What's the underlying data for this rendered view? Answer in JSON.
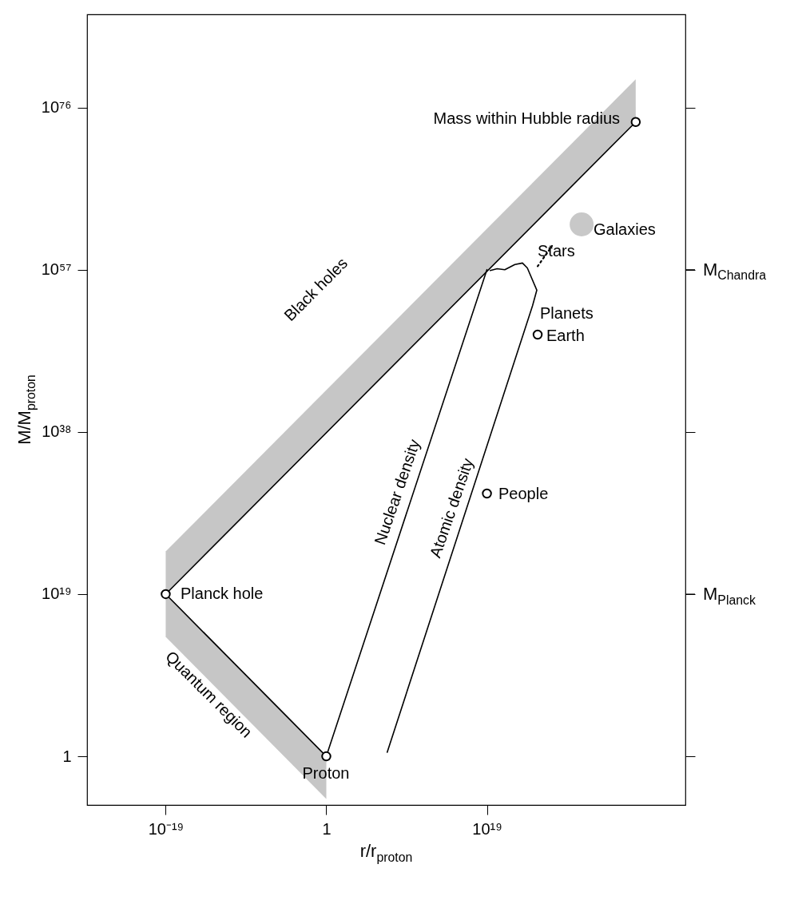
{
  "chart_data": {
    "type": "line",
    "log": "xy",
    "grid": false,
    "legend": false,
    "xlabel": "r/r$_{proton}$",
    "ylabel": "M/M$_{proton}$",
    "xlim": [
      5e-29,
      3e+42
    ],
    "ylim": [
      2e-06,
      8e+86
    ],
    "xticks": [
      {
        "value": 1e-19,
        "label": "10⁻¹⁹"
      },
      1,
      {
        "value": 1e+19,
        "label": "10¹⁹"
      }
    ],
    "yticks": [
      1,
      {
        "value": 1e+19,
        "label": "10¹⁹"
      },
      {
        "value": 1e+38,
        "label": "10³⁸"
      },
      {
        "value": 1e+57,
        "label": "10⁵⁷"
      },
      {
        "value": 1e+76,
        "label": "10⁷⁶"
      }
    ],
    "ref_lines": [
      {
        "axis": "y",
        "value": 1e+19,
        "label": "M$_{Planck}$"
      },
      {
        "axis": "y",
        "value": 1e+57,
        "label": "M$_{Chandra}$"
      }
    ],
    "series": [
      {
        "color": "#000000",
        "x": [
          1e-19,
          4e+36
        ],
        "values": [
          1e+19,
          2e+74
        ],
        "lower": [
          1e+19,
          2e+74
        ],
        "upper": [
          1e+24,
          2e+79
        ]
      },
      {
        "color": "#000000",
        "x": [
          1e-19,
          1
        ],
        "values": [
          1e+19,
          1
        ],
        "lower": [
          100000000000000.0,
          1e-05
        ],
        "upper": [
          1e+19,
          1
        ]
      },
      {
        "color": "#000000",
        "x": [
          1,
          1e+19
        ],
        "values": [
          1,
          1e+57
        ]
      },
      {
        "color": "#000000",
        "x": [
          16000000.0,
          2.5e+24,
          8e+24,
          6e+23,
          1.6e+23,
          2e+22,
          1.3e+21,
          1.6e+20,
          2.5e+19
        ],
        "values": [
          3,
          6e+52,
          4e+54,
          1.6e+57,
          6e+57,
          4e+57,
          1e+57,
          1.3e+57,
          8e+56
        ]
      },
      {
        "color": "#000000",
        "line_style": "dotted",
        "x": [
          1e+25,
          5e+26
        ],
        "values": [
          2.5e+57,
          6e+59
        ]
      },
      {
        "type": "scatter",
        "marker": "circle",
        "color": "#000000",
        "x": [
          1e-19,
          1,
          1e+25,
          1e+19,
          4e+36
        ],
        "values": [
          1e+19,
          1,
          2.5e+49,
          6e+30,
          2e+74
        ]
      },
      {
        "type": "bubble",
        "color": "#c8c8c8",
        "x": [
          1.6e+30
        ],
        "values": [
          2e+62
        ],
        "sizes": [
          1
        ]
      }
    ],
    "annotations": [
      "Black holes",
      "Quantum region",
      "Nuclear density",
      "Atomic density",
      "Planck hole",
      "Proton",
      "Earth",
      "Planets",
      "People",
      "Mass within Hubble radius",
      "Stars",
      "Galaxies"
    ]
  }
}
